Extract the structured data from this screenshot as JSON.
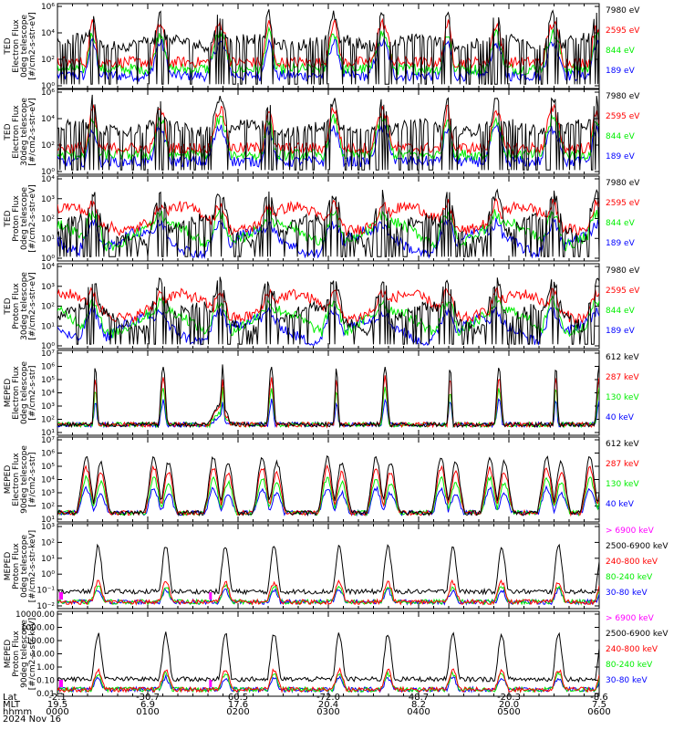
{
  "colors": {
    "blue": "#0000ff",
    "red": "#ff0000",
    "green": "#00ee00",
    "black": "#000000",
    "magenta": "#ff00ff"
  },
  "panels": [
    {
      "title_lines": [
        "TED",
        "Electron Flux",
        "0deg telescope",
        "[#/cm2-s-str-eV]"
      ],
      "yticks": [
        "10⁶",
        "10⁴",
        "10²",
        "10⁰"
      ],
      "legend": [
        {
          "label": "7980 eV",
          "color": "#000000"
        },
        {
          "label": "2595 eV",
          "color": "#ff0000"
        },
        {
          "label": "844 eV",
          "color": "#00ee00"
        },
        {
          "label": "189 eV",
          "color": "#0000ff"
        }
      ]
    },
    {
      "title_lines": [
        "TED",
        "Electron Flux",
        "30deg telescope",
        "[#/cm2-s-str-eV]"
      ],
      "yticks": [
        "10⁶",
        "10⁴",
        "10²",
        "10⁰"
      ],
      "legend": [
        {
          "label": "7980 eV",
          "color": "#000000"
        },
        {
          "label": "2595 eV",
          "color": "#ff0000"
        },
        {
          "label": "844 eV",
          "color": "#00ee00"
        },
        {
          "label": "189 eV",
          "color": "#0000ff"
        }
      ]
    },
    {
      "title_lines": [
        "TED",
        "Proton Flux",
        "0deg telescope",
        "[#/cm2-s-str-eV]"
      ],
      "yticks": [
        "10⁴",
        "10³",
        "10²",
        "10¹",
        "10⁰"
      ],
      "legend": [
        {
          "label": "7980 eV",
          "color": "#000000"
        },
        {
          "label": "2595 eV",
          "color": "#ff0000"
        },
        {
          "label": "844 eV",
          "color": "#00ee00"
        },
        {
          "label": "189 eV",
          "color": "#0000ff"
        }
      ]
    },
    {
      "title_lines": [
        "TED",
        "Proton Flux",
        "30deg telescope",
        "[#/cm2-s-str-eV]"
      ],
      "yticks": [
        "10⁴",
        "10³",
        "10²",
        "10¹",
        "10⁰"
      ],
      "legend": [
        {
          "label": "7980 eV",
          "color": "#000000"
        },
        {
          "label": "2595 eV",
          "color": "#ff0000"
        },
        {
          "label": "844 eV",
          "color": "#00ee00"
        },
        {
          "label": "189 eV",
          "color": "#0000ff"
        }
      ]
    },
    {
      "title_lines": [
        "MEPED",
        "Electron Flux",
        "0deg telescope",
        "[#/cm2-s-str]"
      ],
      "yticks": [
        "10⁷",
        "10⁶",
        "10⁵",
        "10⁴",
        "10³",
        "10²",
        "10¹"
      ],
      "legend": [
        {
          "label": "612 keV",
          "color": "#000000"
        },
        {
          "label": "287 keV",
          "color": "#ff0000"
        },
        {
          "label": "130 keV",
          "color": "#00ee00"
        },
        {
          "label": "40 keV",
          "color": "#0000ff"
        }
      ]
    },
    {
      "title_lines": [
        "MEPED",
        "Electron Flux",
        "90deg telescope",
        "[#/cm2-s-str]"
      ],
      "yticks": [
        "10⁷",
        "10⁶",
        "10⁵",
        "10⁴",
        "10³",
        "10²",
        "10¹"
      ],
      "legend": [
        {
          "label": "612 keV",
          "color": "#000000"
        },
        {
          "label": "287 keV",
          "color": "#ff0000"
        },
        {
          "label": "130 keV",
          "color": "#00ee00"
        },
        {
          "label": "40 keV",
          "color": "#0000ff"
        }
      ]
    },
    {
      "title_lines": [
        "MEPED",
        "Proton Flux",
        "0deg telescope",
        "[#/cm2-s-str-keV]"
      ],
      "yticks": [
        "10³",
        "10²",
        "10¹",
        "10⁰",
        "10⁻¹",
        "10⁻²"
      ],
      "legend": [
        {
          "label": "> 6900 keV",
          "color": "#ff00ff"
        },
        {
          "label": "2500-6900 keV",
          "color": "#000000"
        },
        {
          "label": "240-800 keV",
          "color": "#ff0000"
        },
        {
          "label": "80-240 keV",
          "color": "#00ee00"
        },
        {
          "label": "30-80 keV",
          "color": "#0000ff"
        }
      ]
    },
    {
      "title_lines": [
        "MEPED",
        "Proton Flux",
        "90deg telescope",
        "[#/cm2-s-str-keV]"
      ],
      "yticks": [
        "10000.00",
        "1000.00",
        "100.00",
        "10.00",
        "1.00",
        "0.10",
        "0.01"
      ],
      "legend": [
        {
          "label": "> 6900 keV",
          "color": "#ff00ff"
        },
        {
          "label": "2500-6900 keV",
          "color": "#000000"
        },
        {
          "label": "240-800 keV",
          "color": "#ff0000"
        },
        {
          "label": "80-240 keV",
          "color": "#00ee00"
        },
        {
          "label": "30-80 keV",
          "color": "#0000ff"
        }
      ]
    }
  ],
  "xaxis": {
    "row_labels": [
      "Lat",
      "MLT",
      "hhmm",
      "2024 Nov 16"
    ],
    "ticks": [
      {
        "lat": "-2.1",
        "mlt": "19.5",
        "hhmm": "0000"
      },
      {
        "lat": "-30.7",
        "mlt": "6.9",
        "hhmm": "0100"
      },
      {
        "lat": "60.5",
        "mlt": "17.6",
        "hhmm": "0200"
      },
      {
        "lat": "-72.0",
        "mlt": "20.4",
        "hhmm": "0300"
      },
      {
        "lat": "48.7",
        "mlt": "8.2",
        "hhmm": "0400"
      },
      {
        "lat": "-20.3",
        "mlt": "20.0",
        "hhmm": "0500"
      },
      {
        "lat": "-8.6",
        "mlt": "7.5",
        "hhmm": "0600"
      }
    ]
  },
  "chart_data": {
    "type": "line",
    "x_range": [
      "0000",
      "0600"
    ],
    "x_ticks": [
      "0000",
      "0100",
      "0200",
      "0300",
      "0400",
      "0500",
      "0600"
    ],
    "date": "2024 Nov 16",
    "pass_centers_hhmm": [
      "0010",
      "0055",
      "0125",
      "0200",
      "0235",
      "0305",
      "0340",
      "0410",
      "0445",
      "0515",
      "0550"
    ],
    "panels": [
      {
        "instrument": "TED Electron Flux 0deg",
        "ylim": [
          "10⁰",
          "10⁶"
        ],
        "series": [
          {
            "name": "7980 eV"
          },
          {
            "name": "2595 eV"
          },
          {
            "name": "844 eV"
          },
          {
            "name": "189 eV"
          }
        ]
      },
      {
        "instrument": "TED Electron Flux 30deg",
        "ylim": [
          "10⁰",
          "10⁶"
        ],
        "series": [
          {
            "name": "7980 eV"
          },
          {
            "name": "2595 eV"
          },
          {
            "name": "844 eV"
          },
          {
            "name": "189 eV"
          }
        ]
      },
      {
        "instrument": "TED Proton Flux 0deg",
        "ylim": [
          "10⁰",
          "10⁴"
        ],
        "series": [
          {
            "name": "7980 eV"
          },
          {
            "name": "2595 eV"
          },
          {
            "name": "844 eV"
          },
          {
            "name": "189 eV"
          }
        ]
      },
      {
        "instrument": "TED Proton Flux 30deg",
        "ylim": [
          "10⁰",
          "10⁴"
        ],
        "series": [
          {
            "name": "7980 eV"
          },
          {
            "name": "2595 eV"
          },
          {
            "name": "844 eV"
          },
          {
            "name": "189 eV"
          }
        ]
      },
      {
        "instrument": "MEPED Electron Flux 0deg",
        "ylim": [
          "10¹",
          "10⁷"
        ],
        "series": [
          {
            "name": "612 keV"
          },
          {
            "name": "287 keV"
          },
          {
            "name": "130 keV"
          },
          {
            "name": "40 keV"
          }
        ]
      },
      {
        "instrument": "MEPED Electron Flux 90deg",
        "ylim": [
          "10¹",
          "10⁷"
        ],
        "series": [
          {
            "name": "612 keV"
          },
          {
            "name": "287 keV"
          },
          {
            "name": "130 keV"
          },
          {
            "name": "40 keV"
          }
        ]
      },
      {
        "instrument": "MEPED Proton Flux 0deg",
        "ylim": [
          "10⁻²",
          "10³"
        ],
        "series": [
          {
            "name": "> 6900 keV"
          },
          {
            "name": "2500-6900 keV"
          },
          {
            "name": "240-800 keV"
          },
          {
            "name": "80-240 keV"
          },
          {
            "name": "30-80 keV"
          }
        ]
      },
      {
        "instrument": "MEPED Proton Flux 90deg",
        "ylim": [
          "0.01",
          "10000.00"
        ],
        "series": [
          {
            "name": "> 6900 keV"
          },
          {
            "name": "2500-6900 keV"
          },
          {
            "name": "240-800 keV"
          },
          {
            "name": "80-240 keV"
          },
          {
            "name": "30-80 keV"
          }
        ]
      }
    ]
  }
}
